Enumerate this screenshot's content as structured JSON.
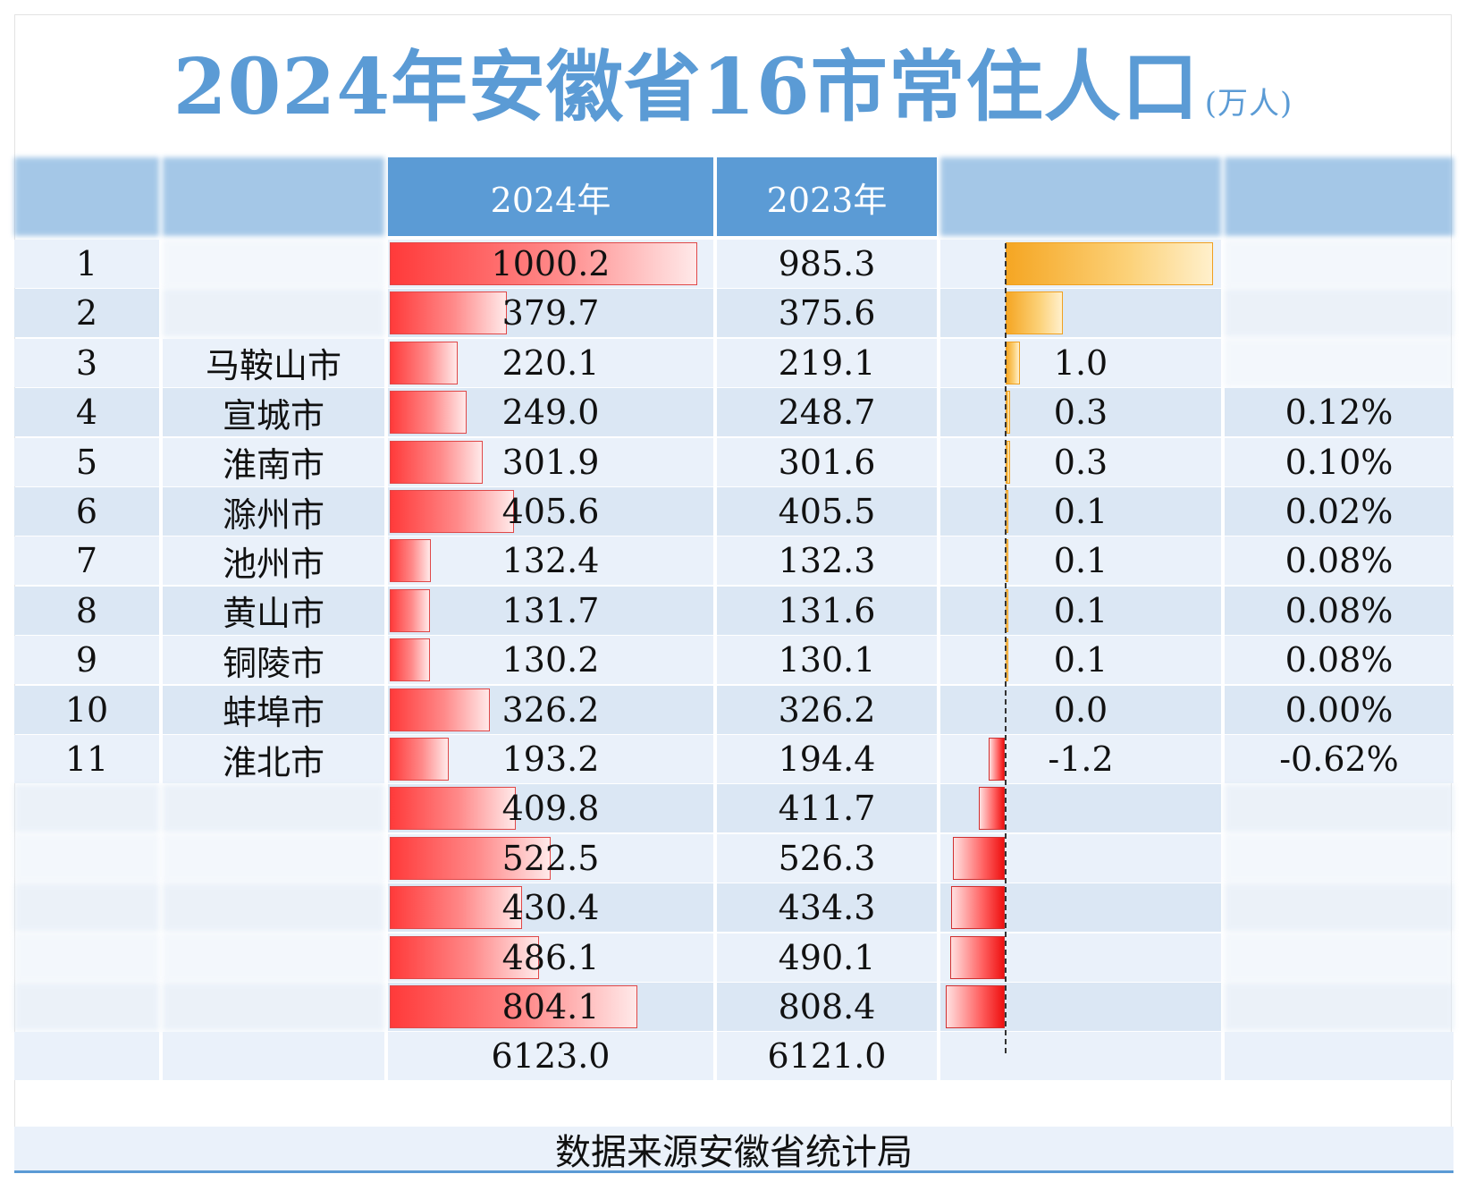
{
  "title": "2024年安徽省16市常住人口",
  "title_unit": "(万人)",
  "headers": [
    "",
    "",
    "2024年",
    "2023年",
    "",
    ""
  ],
  "chart_data": {
    "type": "table",
    "columns": [
      "",
      "",
      "2024年",
      "2023年",
      "",
      ""
    ],
    "rows": [
      {
        "rank": "1",
        "city": "",
        "pop2024": 1000.2,
        "pop2023": 985.3,
        "change": "",
        "pct": ""
      },
      {
        "rank": "2",
        "city": "",
        "pop2024": 379.7,
        "pop2023": 375.6,
        "change": "",
        "pct": ""
      },
      {
        "rank": "3",
        "city": "马鞍山市",
        "pop2024": 220.1,
        "pop2023": 219.1,
        "change": "1.0",
        "pct": ""
      },
      {
        "rank": "4",
        "city": "宣城市",
        "pop2024": 249.0,
        "pop2023": 248.7,
        "change": "0.3",
        "pct": "0.12%"
      },
      {
        "rank": "5",
        "city": "淮南市",
        "pop2024": 301.9,
        "pop2023": 301.6,
        "change": "0.3",
        "pct": "0.10%"
      },
      {
        "rank": "6",
        "city": "滁州市",
        "pop2024": 405.6,
        "pop2023": 405.5,
        "change": "0.1",
        "pct": "0.02%"
      },
      {
        "rank": "7",
        "city": "池州市",
        "pop2024": 132.4,
        "pop2023": 132.3,
        "change": "0.1",
        "pct": "0.08%"
      },
      {
        "rank": "8",
        "city": "黄山市",
        "pop2024": 131.7,
        "pop2023": 131.6,
        "change": "0.1",
        "pct": "0.08%"
      },
      {
        "rank": "9",
        "city": "铜陵市",
        "pop2024": 130.2,
        "pop2023": 130.1,
        "change": "0.1",
        "pct": "0.08%"
      },
      {
        "rank": "10",
        "city": "蚌埠市",
        "pop2024": 326.2,
        "pop2023": 326.2,
        "change": "0.0",
        "pct": "0.00%"
      },
      {
        "rank": "11",
        "city": "淮北市",
        "pop2024": 193.2,
        "pop2023": 194.4,
        "change": "-1.2",
        "pct": "-0.62%"
      },
      {
        "rank": "",
        "city": "",
        "pop2024": 409.8,
        "pop2023": 411.7,
        "change": "",
        "pct": ""
      },
      {
        "rank": "",
        "city": "",
        "pop2024": 522.5,
        "pop2023": 526.3,
        "change": "",
        "pct": ""
      },
      {
        "rank": "",
        "city": "",
        "pop2024": 430.4,
        "pop2023": 434.3,
        "change": "",
        "pct": ""
      },
      {
        "rank": "",
        "city": "",
        "pop2024": 486.1,
        "pop2023": 490.1,
        "change": "",
        "pct": ""
      },
      {
        "rank": "",
        "city": "",
        "pop2024": 804.1,
        "pop2023": 808.4,
        "change": "",
        "pct": ""
      }
    ],
    "change_values": [
      14.9,
      4.1,
      1.0,
      0.3,
      0.3,
      0.1,
      0.1,
      0.1,
      0.1,
      0.0,
      -1.2,
      -1.9,
      -3.8,
      -3.9,
      -4.0,
      -4.3
    ],
    "total_label_2024": "6123.0",
    "total_label_2023": "6121.0",
    "pop_scale_max": 1000.2
  },
  "colors": {
    "accent": "#5b9bd5",
    "bar_2024": "#ff3a3a",
    "bar_positive": "#f5a623",
    "bar_negative": "#ee1111"
  },
  "footer": "数据来源安徽省统计局"
}
